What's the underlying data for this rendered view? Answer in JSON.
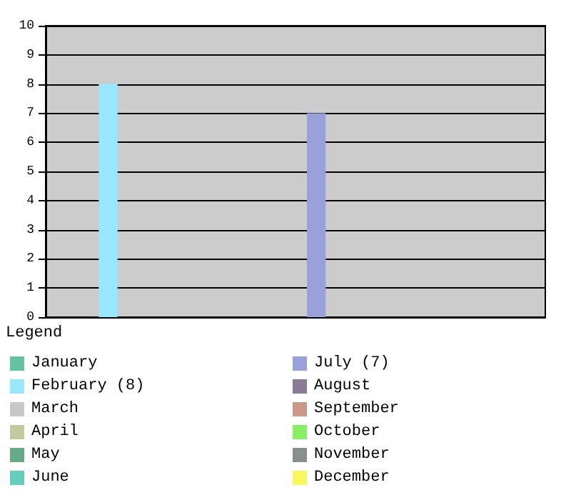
{
  "chart_data": {
    "type": "bar",
    "legend_title": "Legend",
    "categories": [
      null,
      null,
      null,
      null,
      null,
      null,
      null,
      null,
      null,
      null,
      null,
      null
    ],
    "series": [
      {
        "name": "January",
        "color": "#66c2a0",
        "values": [
          0,
          null,
          null,
          null,
          null,
          null,
          null,
          null,
          null,
          null,
          null,
          null
        ]
      },
      {
        "name": "February (8)",
        "color": "#99e6ff",
        "values": [
          null,
          8,
          null,
          null,
          null,
          null,
          null,
          null,
          null,
          null,
          null,
          null
        ]
      },
      {
        "name": "March",
        "color": "#c8c8c8",
        "values": [
          null,
          null,
          0,
          null,
          null,
          null,
          null,
          null,
          null,
          null,
          null,
          null
        ]
      },
      {
        "name": "April",
        "color": "#bfcc9e",
        "values": [
          null,
          null,
          null,
          0,
          null,
          null,
          null,
          null,
          null,
          null,
          null,
          null
        ]
      },
      {
        "name": "May",
        "color": "#66aa88",
        "values": [
          null,
          null,
          null,
          null,
          0,
          null,
          null,
          null,
          null,
          null,
          null,
          null
        ]
      },
      {
        "name": "June",
        "color": "#66ccbb",
        "values": [
          null,
          null,
          null,
          null,
          null,
          0,
          null,
          null,
          null,
          null,
          null,
          null
        ]
      },
      {
        "name": "July (7)",
        "color": "#9aa0d8",
        "values": [
          null,
          null,
          null,
          null,
          null,
          null,
          7,
          null,
          null,
          null,
          null,
          null
        ]
      },
      {
        "name": "August",
        "color": "#8a7a94",
        "values": [
          null,
          null,
          null,
          null,
          null,
          null,
          null,
          0,
          null,
          null,
          null,
          null
        ]
      },
      {
        "name": "September",
        "color": "#cc9988",
        "values": [
          null,
          null,
          null,
          null,
          null,
          null,
          null,
          null,
          0,
          null,
          null,
          null
        ]
      },
      {
        "name": "October",
        "color": "#88ee66",
        "values": [
          null,
          null,
          null,
          null,
          null,
          null,
          null,
          null,
          null,
          0,
          null,
          null
        ]
      },
      {
        "name": "November",
        "color": "#888f90",
        "values": [
          null,
          null,
          null,
          null,
          null,
          null,
          null,
          null,
          null,
          null,
          0,
          null
        ]
      },
      {
        "name": "December",
        "color": "#f7f75e",
        "values": [
          null,
          null,
          null,
          null,
          null,
          null,
          null,
          null,
          null,
          null,
          null,
          0
        ]
      }
    ],
    "ylim": [
      0,
      10
    ],
    "yticks": [
      0,
      1,
      2,
      3,
      4,
      5,
      6,
      7,
      8,
      9,
      10
    ],
    "grid": "y",
    "legend": "bottom",
    "tick_labels": "y"
  }
}
